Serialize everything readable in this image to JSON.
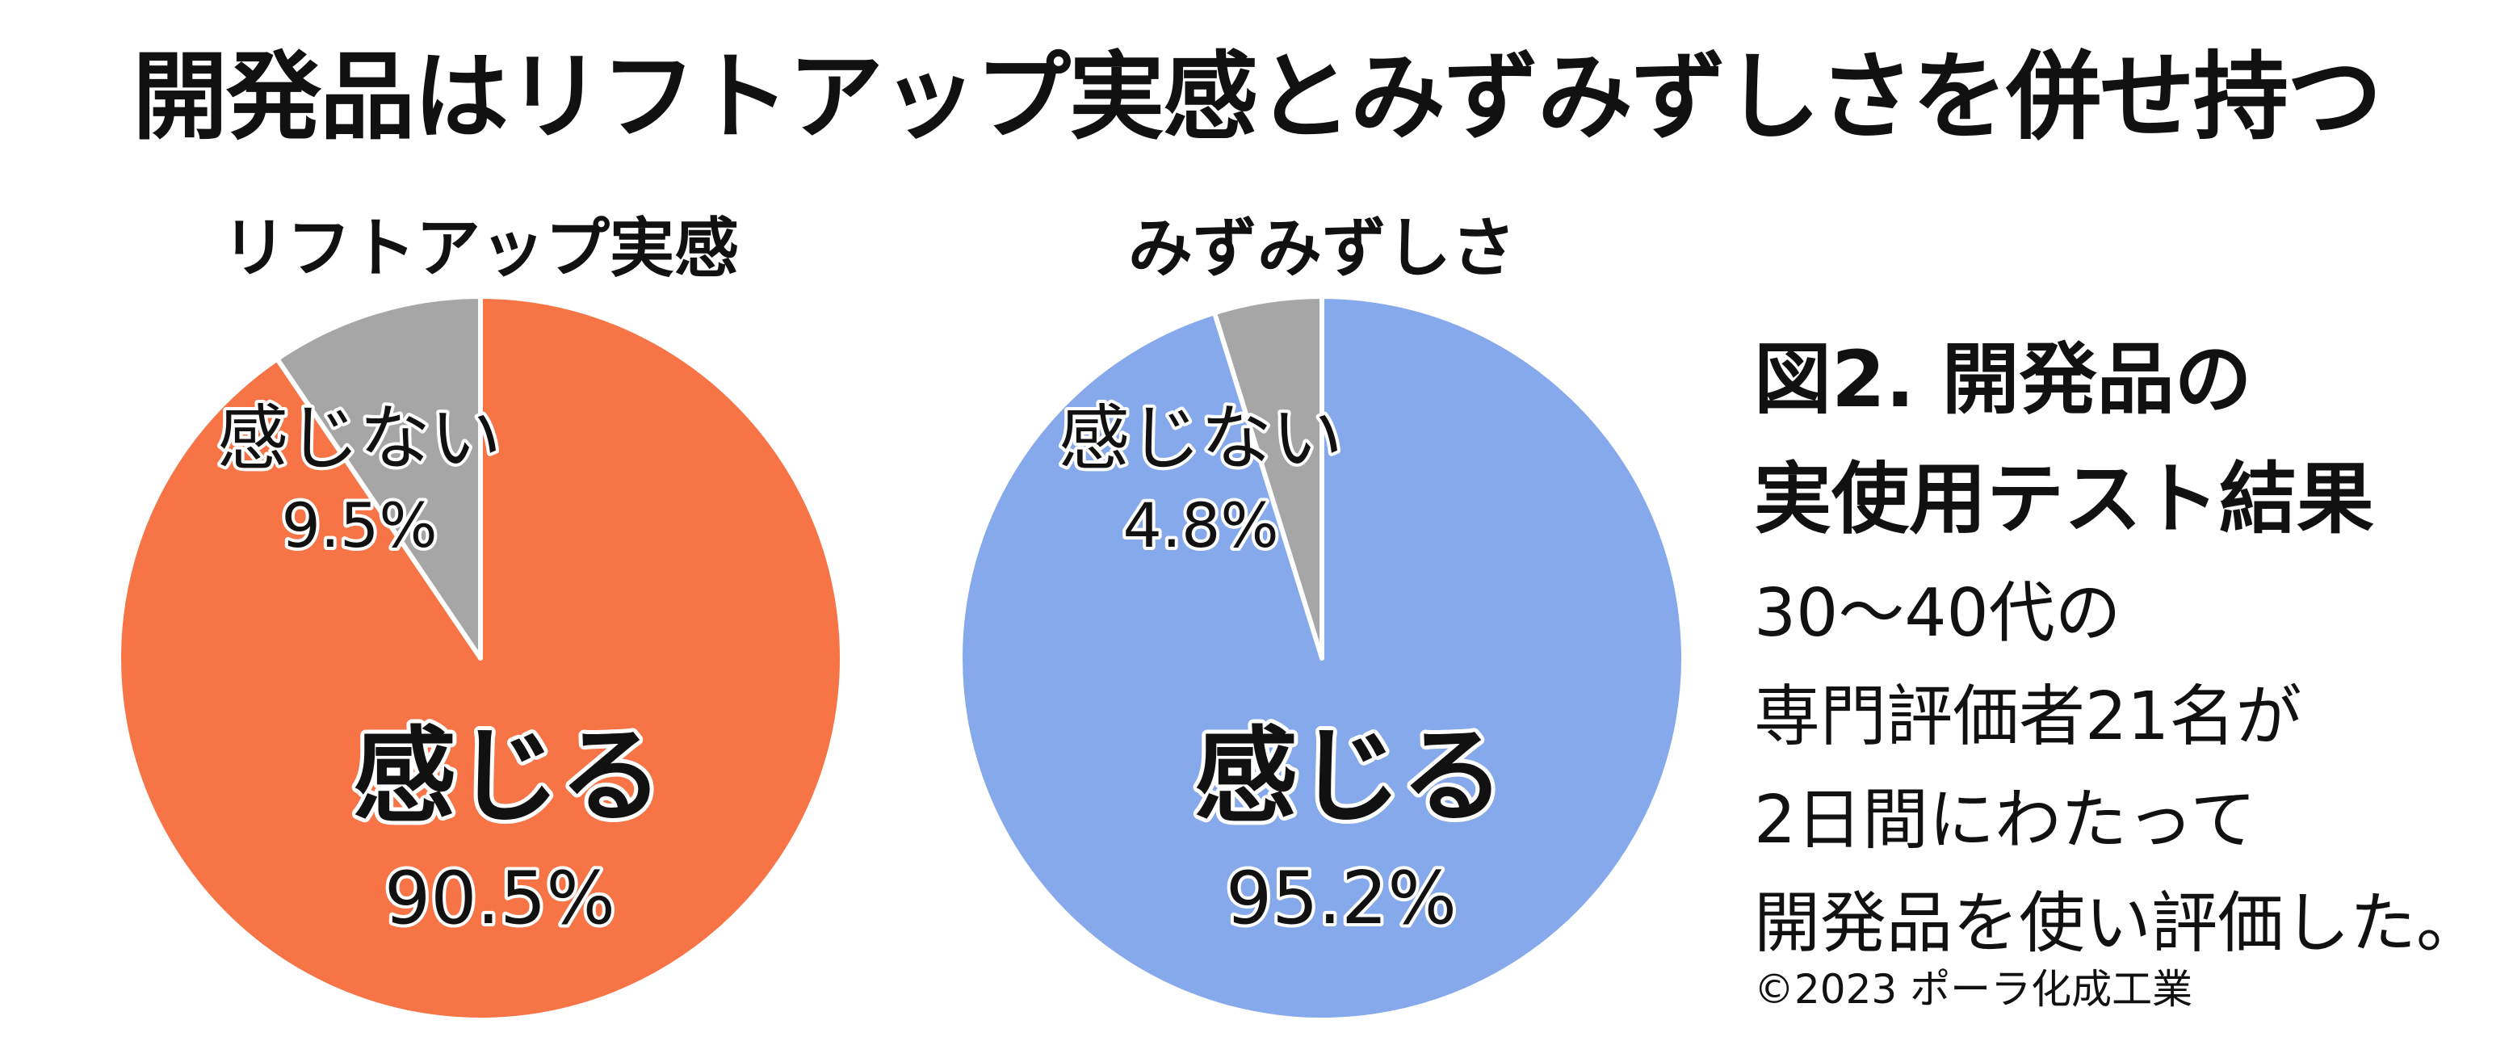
{
  "title": "開発品はリフトアップ実感とみずみずしさを併せ持つ",
  "figure": {
    "title_lines": [
      "図2. 開発品の",
      "実使用テスト結果"
    ],
    "description_lines": [
      "30～40代の",
      "専門評価者21名が",
      "2日間にわたって",
      "開発品を使い評価した。"
    ],
    "copyright": "©2023 ポーラ化成工業"
  },
  "colors": {
    "feel_left": "#f77446",
    "feel_right": "#86a9ec",
    "not_feel": "#a6a6a6",
    "separator": "#ffffff",
    "text": "#111111"
  },
  "chart_data": [
    {
      "type": "pie",
      "title": "リフトアップ実感",
      "slices": [
        {
          "label": "感じない",
          "value": 9.5,
          "value_label": "9.5%",
          "color": "#a6a6a6"
        },
        {
          "label": "感じる",
          "value": 90.5,
          "value_label": "90.5%",
          "color": "#f77446"
        }
      ]
    },
    {
      "type": "pie",
      "title": "みずみずしさ",
      "slices": [
        {
          "label": "感じない",
          "value": 4.8,
          "value_label": "4.8%",
          "color": "#a6a6a6"
        },
        {
          "label": "感じる",
          "value": 95.2,
          "value_label": "95.2%",
          "color": "#86a9ec"
        }
      ]
    }
  ]
}
